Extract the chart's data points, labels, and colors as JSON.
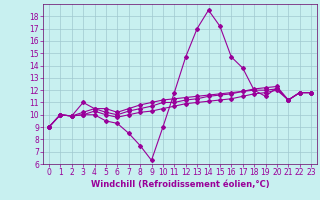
{
  "xlabel": "Windchill (Refroidissement éolien,°C)",
  "background_color": "#c8f0f0",
  "grid_color": "#a0c8d0",
  "line_color": "#990099",
  "axis_color": "#660066",
  "xlim": [
    -0.5,
    23.5
  ],
  "ylim": [
    6,
    19
  ],
  "yticks": [
    6,
    7,
    8,
    9,
    10,
    11,
    12,
    13,
    14,
    15,
    16,
    17,
    18
  ],
  "xticks": [
    0,
    1,
    2,
    3,
    4,
    5,
    6,
    7,
    8,
    9,
    10,
    11,
    12,
    13,
    14,
    15,
    16,
    17,
    18,
    19,
    20,
    21,
    22,
    23
  ],
  "series": [
    [
      9.0,
      10.0,
      9.9,
      10.0,
      10.0,
      9.5,
      9.3,
      8.5,
      7.5,
      6.3,
      9.0,
      11.8,
      14.7,
      17.0,
      18.5,
      17.2,
      14.7,
      13.8,
      12.0,
      11.5,
      12.2,
      11.2,
      11.8,
      11.8
    ],
    [
      9.0,
      10.0,
      9.9,
      10.2,
      10.5,
      10.2,
      10.0,
      10.3,
      10.5,
      10.7,
      11.0,
      11.0,
      11.2,
      11.3,
      11.5,
      11.6,
      11.7,
      11.9,
      12.0,
      12.0,
      12.1,
      11.2,
      11.8,
      11.8
    ],
    [
      9.0,
      10.0,
      9.9,
      10.0,
      10.3,
      10.0,
      9.8,
      10.0,
      10.2,
      10.3,
      10.5,
      10.7,
      10.9,
      11.0,
      11.1,
      11.2,
      11.3,
      11.5,
      11.7,
      11.8,
      12.0,
      11.2,
      11.8,
      11.8
    ],
    [
      9.0,
      10.0,
      9.9,
      11.0,
      10.5,
      10.5,
      10.2,
      10.5,
      10.8,
      11.0,
      11.2,
      11.3,
      11.4,
      11.5,
      11.6,
      11.7,
      11.8,
      11.9,
      12.1,
      12.2,
      12.3,
      11.2,
      11.8,
      11.8
    ]
  ]
}
